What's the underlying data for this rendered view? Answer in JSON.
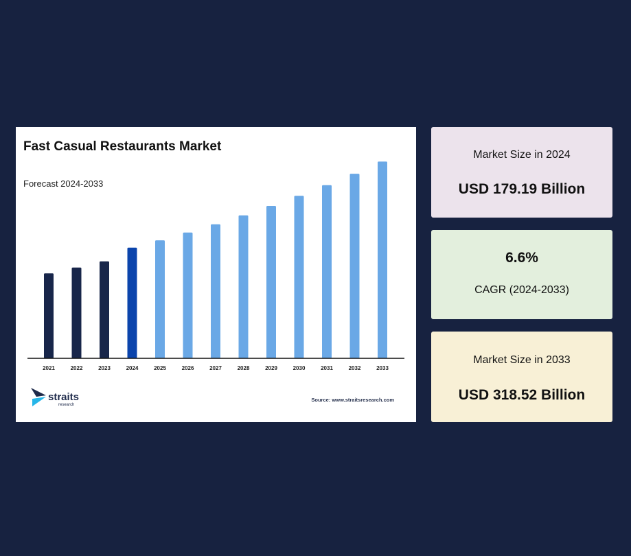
{
  "chart_data": {
    "type": "bar",
    "title": "Fast Casual Restaurants Market",
    "subtitle": "Forecast 2024-2033",
    "categories": [
      "2021",
      "2022",
      "2023",
      "2024",
      "2025",
      "2026",
      "2027",
      "2028",
      "2029",
      "2030",
      "2031",
      "2032",
      "2033"
    ],
    "values": [
      137.5,
      147.0,
      157.0,
      179.19,
      191.0,
      203.6,
      217.0,
      231.4,
      246.7,
      263.0,
      280.3,
      298.8,
      318.52
    ],
    "bar_colors": [
      "#18264a",
      "#18264a",
      "#18264a",
      "#0b44ac",
      "#6aa8e6",
      "#6aa8e6",
      "#6aa8e6",
      "#6aa8e6",
      "#6aa8e6",
      "#6aa8e6",
      "#6aa8e6",
      "#6aa8e6",
      "#6aa8e6"
    ],
    "ylim": [
      0,
      330
    ],
    "xlabel": "",
    "ylabel": "",
    "grid": false,
    "source": "Source: www.straitsresearch.com"
  },
  "logo": {
    "name": "straits",
    "sub": "research"
  },
  "stats": [
    {
      "label": "Market Size in 2024",
      "value": "USD 179.19 Billion"
    },
    {
      "label": "CAGR (2024-2033)",
      "value": "6.6%"
    },
    {
      "label": "Market Size in 2033",
      "value": "USD 318.52 Billion"
    }
  ],
  "colors": {
    "background": "#172240",
    "card_2024": "#ece3ec",
    "card_cagr": "#e3efdd",
    "card_2033": "#f8f0d6"
  }
}
